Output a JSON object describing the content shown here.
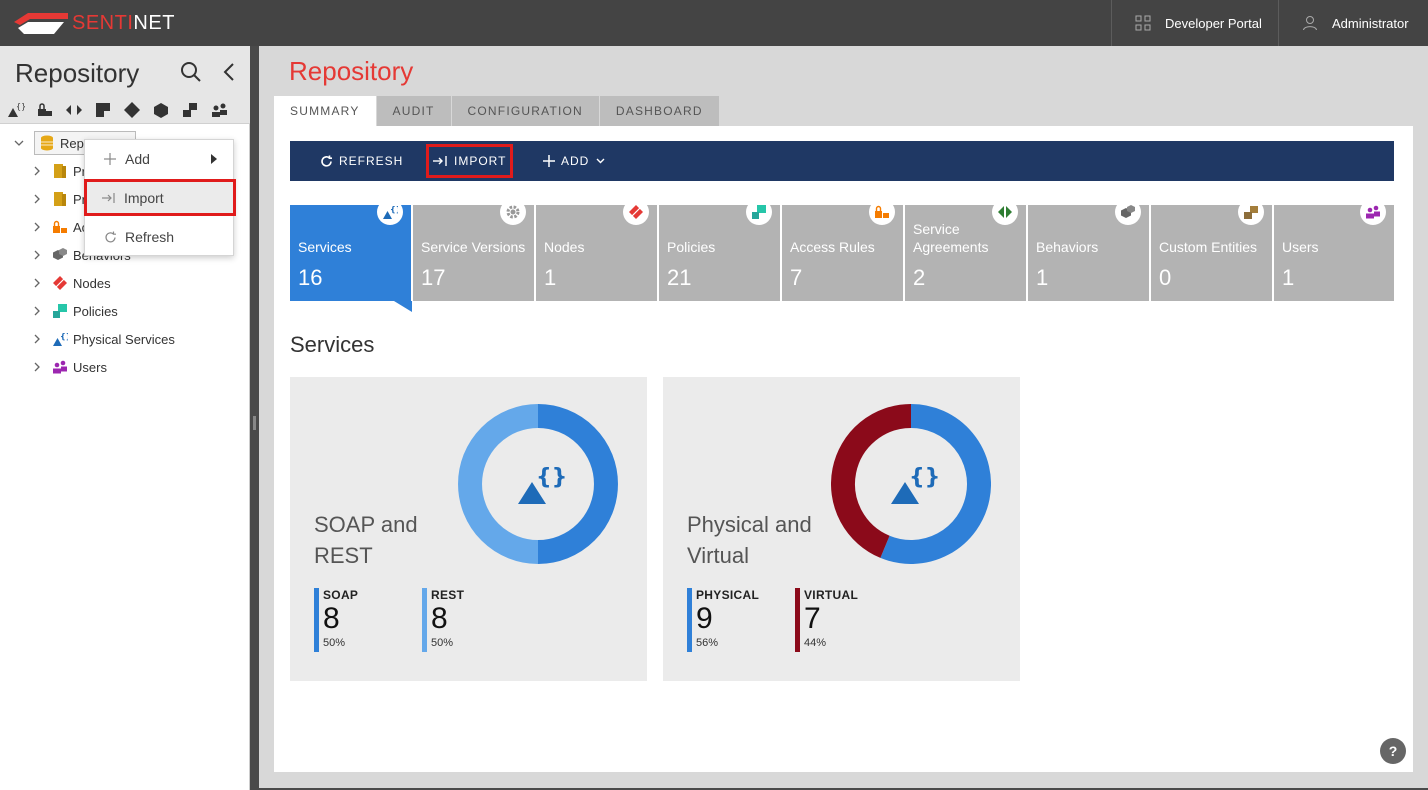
{
  "brand": {
    "logo_prefix": "SENTI",
    "logo_suffix": "NET"
  },
  "topbar": {
    "developer_portal": "Developer Portal",
    "user": "Administrator"
  },
  "sidebar": {
    "title": "Repository",
    "root_label": "Repo",
    "items": [
      {
        "label": "Pr"
      },
      {
        "label": "Pr"
      },
      {
        "label": "Ac"
      },
      {
        "label": "Behaviors"
      },
      {
        "label": "Nodes"
      },
      {
        "label": "Policies"
      },
      {
        "label": "Physical Services"
      },
      {
        "label": "Users"
      }
    ]
  },
  "context_menu": {
    "add": "Add",
    "import": "Import",
    "refresh": "Refresh"
  },
  "main": {
    "title": "Repository",
    "tabs": [
      "SUMMARY",
      "AUDIT",
      "CONFIGURATION",
      "DASHBOARD"
    ],
    "toolbar": {
      "refresh": "REFRESH",
      "import": "IMPORT",
      "add": "ADD"
    },
    "tiles": [
      {
        "label": "Services",
        "count": "16"
      },
      {
        "label": "Service Versions",
        "count": "17"
      },
      {
        "label": "Nodes",
        "count": "1"
      },
      {
        "label": "Policies",
        "count": "21"
      },
      {
        "label": "Access Rules",
        "count": "7"
      },
      {
        "label": "Service Agreements",
        "count": "2"
      },
      {
        "label": "Behaviors",
        "count": "1"
      },
      {
        "label": "Custom Entities",
        "count": "0"
      },
      {
        "label": "Users",
        "count": "1"
      }
    ],
    "section_title": "Services",
    "cards": [
      {
        "title": "SOAP and REST",
        "stats": [
          {
            "name": "SOAP",
            "value": "8",
            "pct": "50%",
            "color": "#2f80d8"
          },
          {
            "name": "REST",
            "value": "8",
            "pct": "50%",
            "color": "#64a8ea"
          }
        ]
      },
      {
        "title": "Physical and Virtual",
        "stats": [
          {
            "name": "PHYSICAL",
            "value": "9",
            "pct": "56%",
            "color": "#2f80d8"
          },
          {
            "name": "VIRTUAL",
            "value": "7",
            "pct": "44%",
            "color": "#8b0a1a"
          }
        ]
      }
    ],
    "help": "?"
  }
}
